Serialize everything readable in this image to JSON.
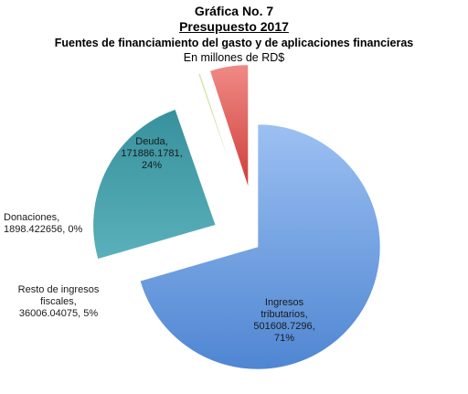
{
  "chart_data": {
    "type": "pie",
    "title": "Gráfica No. 7",
    "subtitle": "Presupuesto 2017",
    "heading": "Fuentes de financiamiento del gasto y de aplicaciones financieras",
    "unit_note": "En millones de RD$",
    "slices": [
      {
        "label_lines": [
          "Ingresos",
          "tributarios,",
          "501608.7296,",
          "71%"
        ],
        "value": 501608.7296,
        "percent": "71%",
        "color": "#5b8fd6"
      },
      {
        "label_lines": [
          "Deuda,",
          "171886.1781,",
          "24%"
        ],
        "value": 171886.1781,
        "percent": "24%",
        "color": "#3e9aa5"
      },
      {
        "label_lines": [
          "Donaciones,",
          "1898.422656, 0%"
        ],
        "value": 1898.422656,
        "percent": "0%",
        "color": "#b9d58a"
      },
      {
        "label_lines": [
          "Resto  de ingresos",
          "fiscales,",
          "36006.04075, 5%"
        ],
        "value": 36006.04075,
        "percent": "5%",
        "color": "#e85f5b"
      }
    ]
  }
}
